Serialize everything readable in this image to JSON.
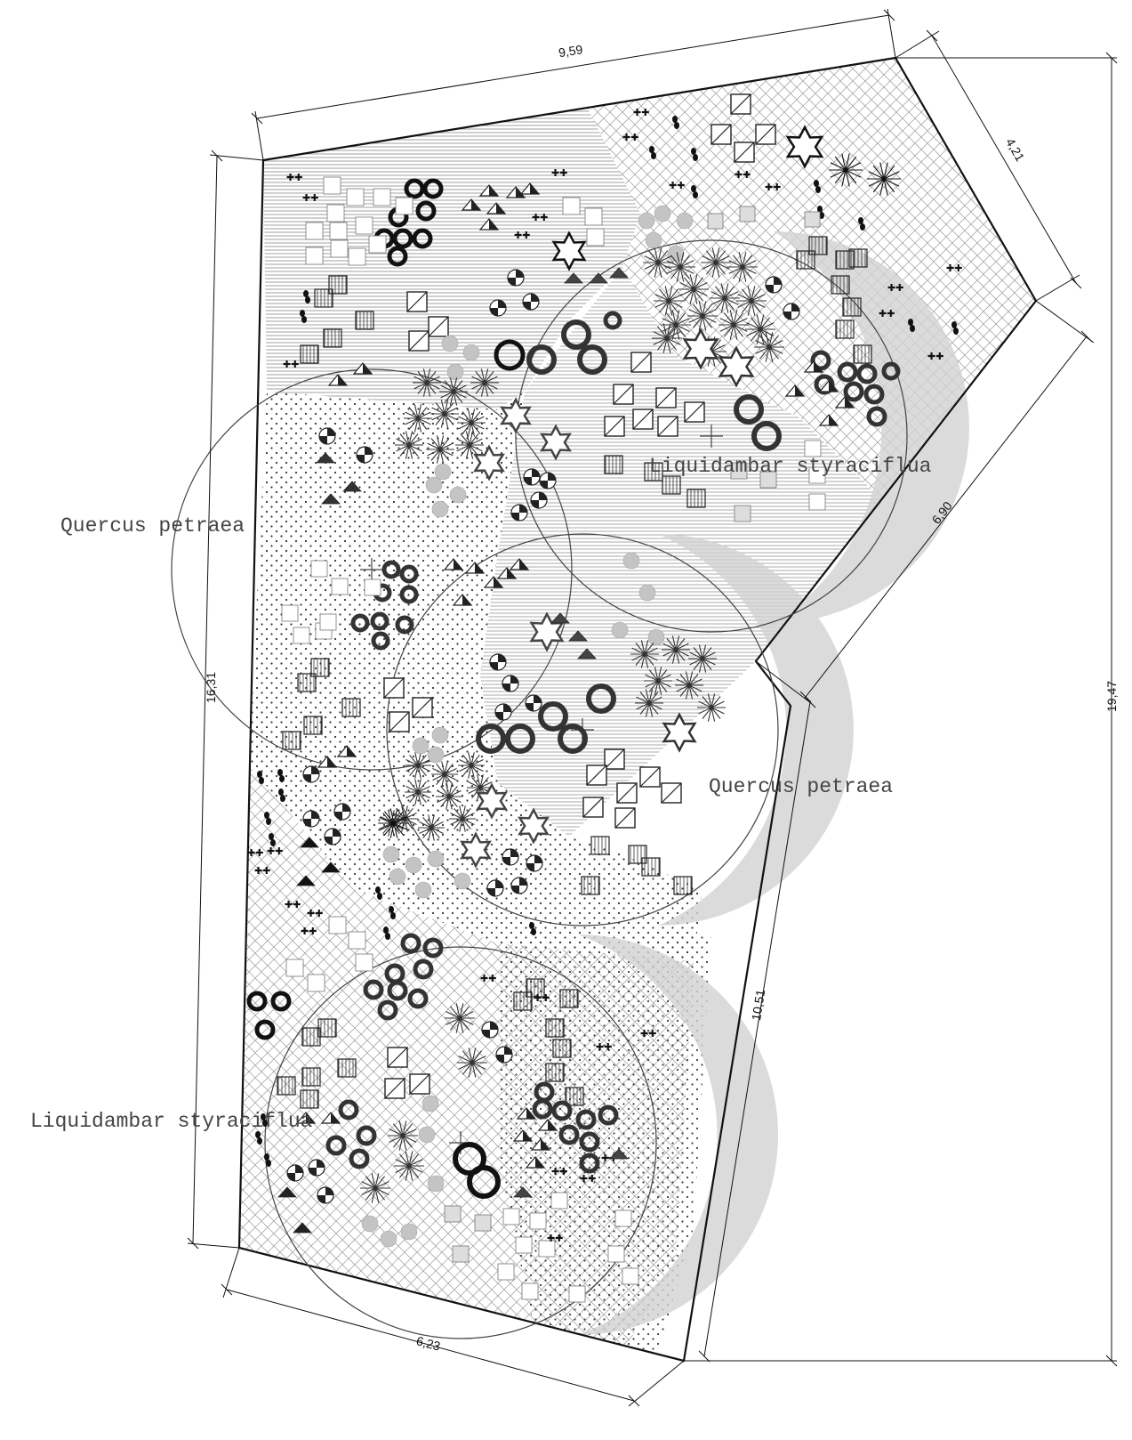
{
  "dimensions": {
    "top": "9,59",
    "upper_right": "4,21",
    "right_diagonal": "6,90",
    "overall_height": "19,47",
    "left": "16,31",
    "lower_right": "10,51",
    "bottom": "6,23"
  },
  "tree_labels": {
    "quercus_left": "Quercus petraea",
    "liquidambar_top": "Liquidambar styraciflua",
    "quercus_center": "Quercus petraea",
    "liquidambar_bottom": "Liquidambar styraciflua"
  },
  "colors": {
    "outline": "#111111",
    "canopy_shadow": "#d6d6d6",
    "hatch_grey": "#888888",
    "plant_dark": "#333333",
    "plant_light": "#bdbdbd"
  }
}
